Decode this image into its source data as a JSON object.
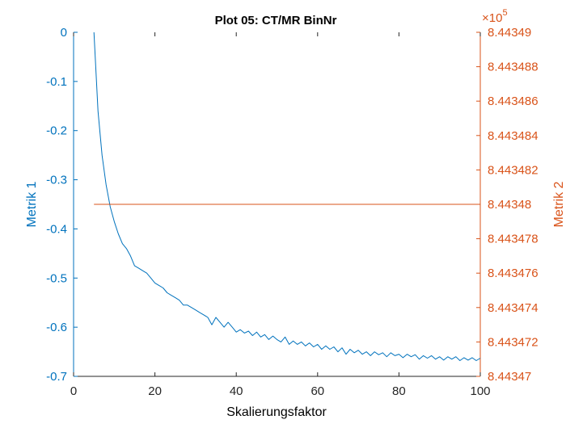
{
  "chart_data": {
    "type": "line",
    "title": "Plot 05: CT/MR BinNr",
    "xlabel": "Skalierungsfaktor",
    "ylabel_left": "Metrik 1",
    "ylabel_right": "Metrik 2",
    "xlim": [
      0,
      100
    ],
    "ylim_left": [
      -0.7,
      0
    ],
    "ylim_right": [
      844347,
      844349
    ],
    "right_axis_exponent": "×10",
    "right_axis_exponent_power": "5",
    "x_ticks": [
      "0",
      "20",
      "40",
      "60",
      "80",
      "100"
    ],
    "y_left_ticks": [
      "0",
      "-0.1",
      "-0.2",
      "-0.3",
      "-0.4",
      "-0.5",
      "-0.6",
      "-0.7"
    ],
    "y_right_ticks": [
      "8.44349",
      "8.443488",
      "8.443486",
      "8.443484",
      "8.443482",
      "8.44348",
      "8.443478",
      "8.443476",
      "8.443474",
      "8.443472",
      "8.44347"
    ],
    "grid": false,
    "colors": {
      "left": "#0072BD",
      "right": "#D95319"
    },
    "series": [
      {
        "axis": "left",
        "x": [
          5,
          6,
          7,
          8,
          9,
          10,
          11,
          12,
          13,
          14,
          15,
          16,
          17,
          18,
          19,
          20,
          21,
          22,
          23,
          24,
          25,
          26,
          27,
          28,
          29,
          30,
          31,
          32,
          33,
          34,
          35,
          36,
          37,
          38,
          39,
          40,
          41,
          42,
          43,
          44,
          45,
          46,
          47,
          48,
          49,
          50,
          51,
          52,
          53,
          54,
          55,
          56,
          57,
          58,
          59,
          60,
          61,
          62,
          63,
          64,
          65,
          66,
          67,
          68,
          69,
          70,
          71,
          72,
          73,
          74,
          75,
          76,
          77,
          78,
          79,
          80,
          81,
          82,
          83,
          84,
          85,
          86,
          87,
          88,
          89,
          90,
          91,
          92,
          93,
          94,
          95,
          96,
          97,
          98,
          99,
          100
        ],
        "values": [
          0,
          -0.16,
          -0.25,
          -0.31,
          -0.355,
          -0.385,
          -0.41,
          -0.43,
          -0.44,
          -0.455,
          -0.475,
          -0.48,
          -0.485,
          -0.49,
          -0.5,
          -0.51,
          -0.515,
          -0.52,
          -0.53,
          -0.535,
          -0.54,
          -0.545,
          -0.555,
          -0.555,
          -0.56,
          -0.565,
          -0.57,
          -0.575,
          -0.58,
          -0.595,
          -0.58,
          -0.59,
          -0.6,
          -0.59,
          -0.6,
          -0.61,
          -0.605,
          -0.612,
          -0.608,
          -0.617,
          -0.61,
          -0.62,
          -0.615,
          -0.625,
          -0.618,
          -0.625,
          -0.63,
          -0.62,
          -0.635,
          -0.628,
          -0.635,
          -0.63,
          -0.638,
          -0.632,
          -0.64,
          -0.635,
          -0.645,
          -0.638,
          -0.645,
          -0.64,
          -0.65,
          -0.642,
          -0.655,
          -0.645,
          -0.652,
          -0.647,
          -0.655,
          -0.65,
          -0.658,
          -0.65,
          -0.656,
          -0.652,
          -0.66,
          -0.652,
          -0.658,
          -0.655,
          -0.662,
          -0.655,
          -0.66,
          -0.656,
          -0.665,
          -0.658,
          -0.663,
          -0.658,
          -0.665,
          -0.66,
          -0.667,
          -0.66,
          -0.665,
          -0.66,
          -0.668,
          -0.662,
          -0.667,
          -0.662,
          -0.668,
          -0.663
        ]
      },
      {
        "axis": "right",
        "x": [
          5,
          100
        ],
        "values": [
          844348,
          844348
        ]
      }
    ]
  }
}
